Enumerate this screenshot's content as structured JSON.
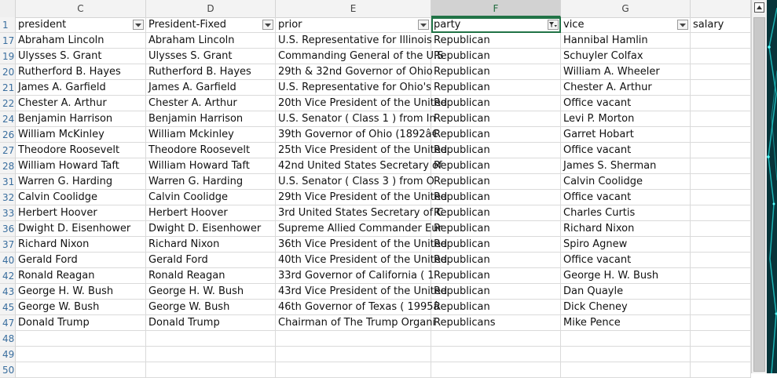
{
  "columns": [
    {
      "letter": "C",
      "header": "president"
    },
    {
      "letter": "D",
      "header": "President-Fixed"
    },
    {
      "letter": "E",
      "header": "prior"
    },
    {
      "letter": "F",
      "header": "party"
    },
    {
      "letter": "G",
      "header": "vice"
    },
    {
      "letter": "",
      "header": "salary"
    }
  ],
  "header_row_number": "1",
  "rows": [
    {
      "n": "17",
      "c": [
        "Abraham Lincoln",
        "Abraham Lincoln",
        "U.S. Representative  for  Illinois",
        "Republican",
        "Hannibal Hamlin",
        ""
      ]
    },
    {
      "n": "19",
      "c": [
        "Ulysses S. Grant",
        "Ulysses S. Grant",
        "Commanding General  of the U.S",
        "Republican",
        "Schuyler Colfax",
        ""
      ]
    },
    {
      "n": "20",
      "c": [
        "Rutherford B. Hayes",
        "Rutherford B. Hayes",
        "29th & 32nd  Governor of Ohio",
        "Republican",
        "William A. Wheeler",
        ""
      ]
    },
    {
      "n": "21",
      "c": [
        "James A. Garfield",
        "James A. Garfield",
        "U.S. Representative  for Ohio's",
        "Republican",
        "Chester A. Arthur",
        ""
      ]
    },
    {
      "n": "22",
      "c": [
        "Chester A. Arthur",
        "Chester A. Arthur",
        "20th  Vice President of the United",
        "Republican",
        "Office vacant",
        ""
      ]
    },
    {
      "n": "24",
      "c": [
        "Benjamin Harrison",
        "Benjamin Harrison",
        "U.S. Senator   ( Class 1 )   from  In",
        "Republican",
        "Levi P. Morton",
        ""
      ]
    },
    {
      "n": "26",
      "c": [
        "William McKinley",
        "William Mckinley",
        "39th  Governor of Ohio  (1892â€",
        "Republican",
        "Garret Hobart",
        ""
      ]
    },
    {
      "n": "27",
      "c": [
        "Theodore Roosevelt",
        "Theodore Roosevelt",
        "25th  Vice President of the United",
        "Republican",
        "Office vacant",
        ""
      ]
    },
    {
      "n": "28",
      "c": [
        "William Howard Taft",
        "William Howard Taft",
        "42nd  United States Secretary of",
        "Republican",
        "James S. Sherman",
        ""
      ]
    },
    {
      "n": "31",
      "c": [
        "Warren G. Harding",
        "Warren G. Harding",
        "U.S. Senator   ( Class 3 )   from  O",
        "Republican",
        "Calvin Coolidge",
        ""
      ]
    },
    {
      "n": "32",
      "c": [
        "Calvin Coolidge",
        "Calvin Coolidge",
        "29th  Vice President of the United",
        "Republican",
        "Office vacant",
        ""
      ]
    },
    {
      "n": "33",
      "c": [
        "Herbert Hoover",
        "Herbert Hoover",
        "3rd  United States Secretary of C",
        "Republican",
        "Charles Curtis",
        ""
      ]
    },
    {
      "n": "36",
      "c": [
        "Dwight D. Eisenhower",
        "Dwight D. Eisenhower",
        "Supreme Allied Commander Eur",
        "Republican",
        "Richard Nixon",
        ""
      ]
    },
    {
      "n": "37",
      "c": [
        "Richard Nixon",
        "Richard Nixon",
        "36th  Vice President of the United",
        "Republican",
        "Spiro Agnew",
        ""
      ]
    },
    {
      "n": "40",
      "c": [
        "Gerald Ford",
        "Gerald Ford",
        "40th  Vice President of the United",
        "Republican",
        "Office vacant",
        ""
      ]
    },
    {
      "n": "42",
      "c": [
        "Ronald Reagan",
        "Ronald Reagan",
        "33rd  Governor of California   ( 1",
        "Republican",
        "George H. W. Bush",
        ""
      ]
    },
    {
      "n": "43",
      "c": [
        "George H. W. Bush",
        "George H. W. Bush",
        "43rd  Vice President of the United",
        "Republican",
        "Dan Quayle",
        ""
      ]
    },
    {
      "n": "45",
      "c": [
        "George W. Bush",
        "George W. Bush",
        "46th  Governor of Texas   ( 1995â",
        "Republican",
        "Dick Cheney",
        ""
      ]
    },
    {
      "n": "47",
      "c": [
        "Donald Trump",
        "Donald Trump",
        "Chairman of   The Trump Organi",
        "Republicans",
        "Mike Pence",
        ""
      ]
    },
    {
      "n": "48",
      "c": [
        "",
        "",
        "",
        "",
        "",
        ""
      ]
    },
    {
      "n": "49",
      "c": [
        "",
        "",
        "",
        "",
        "",
        ""
      ]
    },
    {
      "n": "50",
      "c": [
        "",
        "",
        "",
        "",
        "",
        ""
      ]
    }
  ],
  "filter_active_column": "party",
  "selected_column": "F",
  "colors": {
    "accent": "#217346",
    "header_bg": "#f3f3f3",
    "rownum": "#3a6e9e"
  },
  "icons": {
    "filter": "filter-dropdown-icon",
    "filter_active": "filter-active-icon",
    "scroll_up": "scroll-up-arrow-icon"
  }
}
